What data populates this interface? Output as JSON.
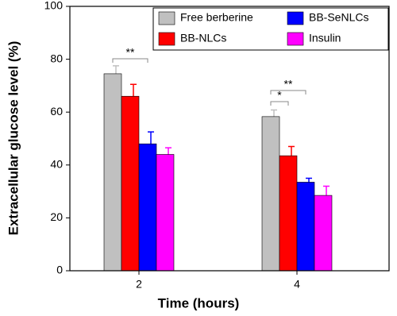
{
  "chart_data": {
    "type": "bar",
    "xlabel": "Time (hours)",
    "ylabel": "Extracellular glucose level (%)",
    "categories": [
      "2",
      "4"
    ],
    "series": [
      {
        "name": "Free berberine",
        "color": "#c0c0c0",
        "values": [
          74.5,
          58.3
        ],
        "errors": [
          3,
          2.5
        ]
      },
      {
        "name": "BB-NLCs",
        "color": "#ff0000",
        "values": [
          66,
          43.5
        ],
        "errors": [
          4.5,
          3.5
        ]
      },
      {
        "name": "BB-SeNLCs",
        "color": "#0000ff",
        "values": [
          48,
          33.5
        ],
        "errors": [
          4.5,
          1.5
        ]
      },
      {
        "name": "Insulin",
        "color": "#ff00ff",
        "values": [
          44,
          28.5
        ],
        "errors": [
          2.5,
          3.5
        ]
      }
    ],
    "ylim": [
      0,
      100
    ],
    "yticks": [
      0,
      20,
      40,
      60,
      80,
      100
    ],
    "annotations": [
      "**",
      "*",
      "**"
    ]
  }
}
